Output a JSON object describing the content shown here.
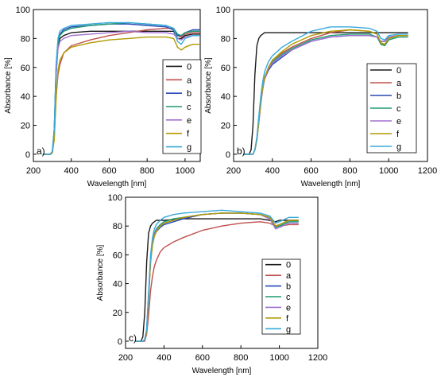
{
  "colors": {
    "0": "#1a1a1a",
    "a": "#c0504d",
    "b": "#2848b4",
    "c": "#1f9a72",
    "e": "#a070d0",
    "f": "#b09a00",
    "g": "#38aadc"
  },
  "chart_data": [
    {
      "type": "line",
      "panel_label": "a)",
      "xlabel": "Wavelength [nm]",
      "ylabel": "Absorbance [%]",
      "xlim": [
        200,
        1080
      ],
      "ylim": [
        -5,
        100
      ],
      "x_ticks": [
        200,
        400,
        600,
        800,
        1000
      ],
      "y_ticks": [
        0,
        20,
        40,
        60,
        80,
        100
      ],
      "legend_position": "right",
      "series": [
        {
          "name": "0",
          "x": [
            250,
            290,
            300,
            310,
            320,
            330,
            340,
            360,
            400,
            500,
            600,
            700,
            800,
            900,
            940,
            960,
            980,
            1000,
            1040,
            1080
          ],
          "y": [
            0,
            0,
            2,
            15,
            55,
            75,
            80,
            82,
            84,
            85,
            85,
            85,
            85,
            85,
            85,
            80,
            80,
            82,
            83,
            83
          ]
        },
        {
          "name": "a",
          "x": [
            250,
            290,
            300,
            310,
            320,
            330,
            340,
            360,
            400,
            500,
            600,
            700,
            800,
            900,
            940,
            960,
            980,
            1000,
            1040,
            1080
          ],
          "y": [
            0,
            0,
            1,
            12,
            40,
            55,
            62,
            70,
            75,
            79,
            82,
            84,
            86,
            87,
            87,
            82,
            81,
            83,
            84,
            84
          ]
        },
        {
          "name": "b",
          "x": [
            250,
            290,
            300,
            310,
            320,
            330,
            340,
            360,
            400,
            500,
            600,
            700,
            800,
            900,
            940,
            960,
            980,
            1000,
            1040,
            1080
          ],
          "y": [
            0,
            0,
            2,
            18,
            60,
            78,
            83,
            86,
            88,
            89,
            90,
            90,
            89,
            88,
            86,
            82,
            82,
            84,
            86,
            86
          ]
        },
        {
          "name": "c",
          "x": [
            250,
            290,
            300,
            310,
            320,
            330,
            340,
            360,
            400,
            500,
            600,
            700,
            800,
            900,
            940,
            960,
            980,
            1000,
            1040,
            1080
          ],
          "y": [
            0,
            0,
            2,
            16,
            58,
            77,
            82,
            85,
            87,
            89,
            90,
            91,
            90,
            89,
            87,
            83,
            82,
            84,
            85,
            85
          ]
        },
        {
          "name": "e",
          "x": [
            250,
            290,
            300,
            310,
            320,
            330,
            340,
            360,
            400,
            500,
            600,
            700,
            800,
            900,
            940,
            960,
            980,
            1000,
            1040,
            1080
          ],
          "y": [
            0,
            0,
            2,
            15,
            55,
            73,
            78,
            80,
            82,
            83,
            84,
            85,
            84,
            84,
            83,
            80,
            79,
            81,
            82,
            82
          ]
        },
        {
          "name": "f",
          "x": [
            250,
            290,
            300,
            310,
            320,
            330,
            340,
            360,
            400,
            500,
            600,
            700,
            800,
            900,
            940,
            960,
            980,
            1000,
            1040,
            1080
          ],
          "y": [
            0,
            0,
            1,
            10,
            38,
            58,
            65,
            70,
            74,
            77,
            79,
            80,
            81,
            81,
            80,
            74,
            72,
            74,
            76,
            76
          ]
        },
        {
          "name": "g",
          "x": [
            250,
            290,
            300,
            310,
            320,
            330,
            340,
            360,
            400,
            500,
            600,
            700,
            800,
            900,
            940,
            960,
            980,
            1000,
            1040,
            1080
          ],
          "y": [
            0,
            0,
            2,
            17,
            62,
            80,
            85,
            87,
            89,
            90,
            91,
            91,
            90,
            89,
            87,
            78,
            76,
            80,
            82,
            82
          ]
        }
      ]
    },
    {
      "type": "line",
      "panel_label": "b)",
      "xlabel": "Wavelength [nm]",
      "ylabel": "Absorbance [%]",
      "xlim": [
        200,
        1200
      ],
      "ylim": [
        -5,
        100
      ],
      "x_ticks": [
        200,
        400,
        600,
        800,
        1000,
        1200
      ],
      "y_ticks": [
        0,
        20,
        40,
        60,
        80,
        100
      ],
      "legend_position": "right",
      "series": [
        {
          "name": "0",
          "x": [
            250,
            280,
            290,
            300,
            310,
            320,
            330,
            340,
            360,
            400,
            500,
            600,
            700,
            800,
            900,
            950,
            1000,
            1050,
            1100
          ],
          "y": [
            0,
            0,
            3,
            20,
            55,
            75,
            80,
            82,
            84,
            84,
            84,
            84,
            84,
            84,
            84,
            84,
            84,
            84,
            84
          ]
        },
        {
          "name": "a",
          "x": [
            250,
            290,
            300,
            310,
            320,
            330,
            340,
            350,
            360,
            380,
            400,
            450,
            500,
            600,
            700,
            800,
            900,
            940,
            960,
            980,
            1000,
            1050,
            1100
          ],
          "y": [
            0,
            0,
            0,
            3,
            10,
            22,
            35,
            45,
            52,
            60,
            65,
            70,
            74,
            80,
            84,
            86,
            85,
            83,
            76,
            76,
            80,
            82,
            82
          ]
        },
        {
          "name": "b",
          "x": [
            250,
            290,
            300,
            310,
            320,
            330,
            340,
            350,
            360,
            380,
            400,
            450,
            500,
            600,
            700,
            800,
            900,
            940,
            960,
            980,
            1000,
            1050,
            1100
          ],
          "y": [
            0,
            0,
            0,
            3,
            10,
            22,
            35,
            45,
            52,
            58,
            62,
            67,
            72,
            78,
            81,
            82,
            82,
            81,
            78,
            78,
            81,
            82,
            82
          ]
        },
        {
          "name": "c",
          "x": [
            250,
            290,
            300,
            310,
            320,
            330,
            340,
            350,
            360,
            380,
            400,
            450,
            500,
            600,
            700,
            800,
            900,
            940,
            960,
            980,
            1000,
            1050,
            1100
          ],
          "y": [
            0,
            0,
            0,
            3,
            10,
            23,
            36,
            46,
            53,
            60,
            64,
            69,
            73,
            79,
            82,
            83,
            83,
            81,
            76,
            75,
            79,
            81,
            81
          ]
        },
        {
          "name": "e",
          "x": [
            250,
            290,
            300,
            310,
            320,
            330,
            340,
            350,
            360,
            380,
            400,
            450,
            500,
            600,
            700,
            800,
            900,
            940,
            960,
            980,
            1000,
            1050,
            1100
          ],
          "y": [
            0,
            0,
            0,
            3,
            10,
            22,
            35,
            45,
            52,
            59,
            63,
            68,
            72,
            78,
            81,
            82,
            82,
            81,
            78,
            78,
            81,
            82,
            82
          ]
        },
        {
          "name": "f",
          "x": [
            250,
            290,
            300,
            310,
            320,
            330,
            340,
            350,
            360,
            380,
            400,
            450,
            500,
            600,
            700,
            800,
            900,
            940,
            960,
            980,
            1000,
            1050,
            1100
          ],
          "y": [
            0,
            0,
            0,
            3,
            10,
            22,
            36,
            46,
            53,
            60,
            65,
            71,
            76,
            82,
            85,
            86,
            85,
            83,
            77,
            76,
            80,
            82,
            82
          ]
        },
        {
          "name": "g",
          "x": [
            250,
            290,
            300,
            310,
            320,
            330,
            340,
            350,
            360,
            380,
            400,
            450,
            500,
            600,
            700,
            800,
            900,
            940,
            960,
            980,
            1000,
            1050,
            1100
          ],
          "y": [
            0,
            0,
            0,
            3,
            12,
            26,
            40,
            50,
            57,
            64,
            68,
            74,
            78,
            85,
            88,
            88,
            87,
            85,
            80,
            79,
            82,
            83,
            83
          ]
        }
      ]
    },
    {
      "type": "line",
      "panel_label": "c)",
      "xlabel": "Wavelength [nm]",
      "ylabel": "Absorbance [%]",
      "xlim": [
        200,
        1200
      ],
      "ylim": [
        -5,
        100
      ],
      "x_ticks": [
        200,
        400,
        600,
        800,
        1000,
        1200
      ],
      "y_ticks": [
        0,
        20,
        40,
        60,
        80,
        100
      ],
      "legend_position": "right",
      "series": [
        {
          "name": "0",
          "x": [
            250,
            280,
            290,
            300,
            310,
            320,
            330,
            340,
            360,
            400,
            500,
            600,
            700,
            800,
            900,
            950,
            980,
            1000,
            1050,
            1100
          ],
          "y": [
            0,
            0,
            3,
            20,
            55,
            75,
            80,
            82,
            84,
            84,
            85,
            85,
            85,
            85,
            85,
            84,
            83,
            84,
            84,
            84
          ]
        },
        {
          "name": "a",
          "x": [
            250,
            290,
            300,
            310,
            320,
            330,
            340,
            350,
            360,
            380,
            400,
            450,
            500,
            600,
            700,
            800,
            900,
            950,
            980,
            1000,
            1050,
            1100
          ],
          "y": [
            0,
            0,
            0,
            5,
            18,
            35,
            45,
            52,
            56,
            62,
            65,
            69,
            72,
            77,
            80,
            82,
            83,
            82,
            80,
            80,
            81,
            81
          ]
        },
        {
          "name": "b",
          "x": [
            250,
            290,
            300,
            310,
            320,
            330,
            340,
            350,
            360,
            380,
            400,
            450,
            500,
            600,
            700,
            800,
            900,
            950,
            980,
            1000,
            1050,
            1100
          ],
          "y": [
            0,
            0,
            1,
            8,
            30,
            55,
            67,
            73,
            76,
            79,
            81,
            83,
            85,
            88,
            89,
            89,
            88,
            86,
            80,
            81,
            84,
            84
          ]
        },
        {
          "name": "c",
          "x": [
            250,
            290,
            300,
            310,
            320,
            330,
            340,
            350,
            360,
            380,
            400,
            450,
            500,
            600,
            700,
            800,
            900,
            950,
            980,
            1000,
            1050,
            1100
          ],
          "y": [
            0,
            0,
            1,
            8,
            32,
            57,
            69,
            75,
            78,
            81,
            83,
            85,
            86,
            88,
            89,
            89,
            88,
            85,
            79,
            80,
            83,
            83
          ]
        },
        {
          "name": "e",
          "x": [
            250,
            290,
            300,
            310,
            320,
            330,
            340,
            350,
            360,
            380,
            400,
            450,
            500,
            600,
            700,
            800,
            900,
            950,
            980,
            1000,
            1050,
            1100
          ],
          "y": [
            0,
            0,
            1,
            8,
            31,
            56,
            68,
            74,
            77,
            80,
            82,
            84,
            86,
            88,
            89,
            89,
            88,
            85,
            78,
            79,
            82,
            82
          ]
        },
        {
          "name": "f",
          "x": [
            250,
            290,
            300,
            310,
            320,
            330,
            340,
            350,
            360,
            380,
            400,
            450,
            500,
            600,
            700,
            800,
            900,
            950,
            980,
            1000,
            1050,
            1100
          ],
          "y": [
            0,
            0,
            1,
            7,
            30,
            55,
            67,
            73,
            76,
            80,
            82,
            84,
            86,
            88,
            89,
            89,
            88,
            86,
            80,
            81,
            84,
            84
          ]
        },
        {
          "name": "g",
          "x": [
            250,
            290,
            300,
            310,
            320,
            330,
            340,
            350,
            360,
            380,
            400,
            450,
            500,
            600,
            700,
            800,
            900,
            950,
            980,
            1000,
            1050,
            1100
          ],
          "y": [
            0,
            0,
            1,
            9,
            34,
            60,
            72,
            78,
            81,
            84,
            86,
            88,
            89,
            90,
            91,
            90,
            89,
            87,
            82,
            83,
            86,
            86
          ]
        }
      ]
    }
  ]
}
